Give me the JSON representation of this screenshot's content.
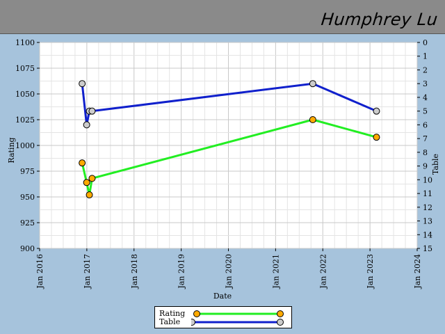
{
  "header": {
    "player_name": "Humphrey Lu"
  },
  "colors": {
    "rating": "#22ee22",
    "table": "#1020cc",
    "rating_marker": "#ffaa00",
    "table_marker": "#cccccc",
    "background": "#a6c3dc",
    "header": "#8a8a8a"
  },
  "legend": {
    "rating_label": "Rating",
    "table_label": "Table"
  },
  "chart_data": {
    "type": "line",
    "xlabel": "Date",
    "ylabel": "Rating",
    "y2label": "Table",
    "xlim": [
      "2016-01-01",
      "2024-01-01"
    ],
    "ylim": [
      900,
      1100
    ],
    "y2lim": [
      15,
      0
    ],
    "x_ticks": [
      "Jan 2016",
      "Jan 2017",
      "Jan 2018",
      "Jan 2019",
      "Jan 2020",
      "Jan 2021",
      "Jan 2022",
      "Jan 2023",
      "Jan 2024"
    ],
    "y_ticks": [
      900,
      925,
      950,
      975,
      1000,
      1025,
      1050,
      1075,
      1100
    ],
    "y2_ticks": [
      0,
      1,
      2,
      3,
      4,
      5,
      6,
      7,
      8,
      9,
      10,
      11,
      12,
      13,
      14,
      15
    ],
    "grid": true,
    "legend_position": "bottom",
    "series": [
      {
        "name": "Rating",
        "axis": "left",
        "points": [
          {
            "x": "2016-11-25",
            "y": 983
          },
          {
            "x": "2016-12-30",
            "y": 964
          },
          {
            "x": "2017-01-20",
            "y": 952
          },
          {
            "x": "2017-02-10",
            "y": 968
          },
          {
            "x": "2021-10-15",
            "y": 1025
          },
          {
            "x": "2023-02-20",
            "y": 1008
          }
        ]
      },
      {
        "name": "Table",
        "axis": "right",
        "points": [
          {
            "x": "2016-11-25",
            "y": 3
          },
          {
            "x": "2016-12-30",
            "y": 6
          },
          {
            "x": "2017-01-20",
            "y": 5
          },
          {
            "x": "2017-02-10",
            "y": 5
          },
          {
            "x": "2021-10-15",
            "y": 3
          },
          {
            "x": "2023-02-20",
            "y": 5
          }
        ]
      }
    ]
  }
}
